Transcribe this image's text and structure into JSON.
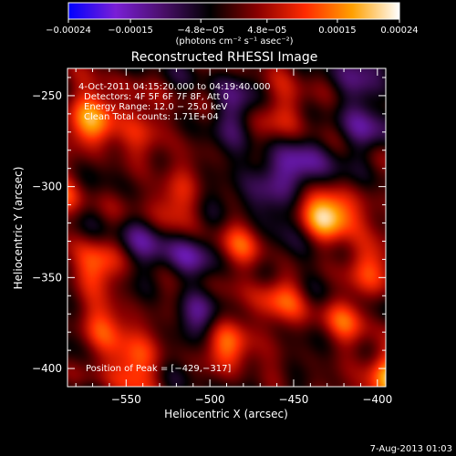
{
  "chart_data": {
    "type": "heatmap",
    "title": "Reconstructed RHESSI Image",
    "xlabel": "Heliocentric X (arcsec)",
    "ylabel": "Heliocentric Y (arcsec)",
    "xlim": [
      -585,
      -395
    ],
    "ylim": [
      -410,
      -235
    ],
    "x_ticks": [
      -550,
      -500,
      -450,
      -400
    ],
    "y_ticks": [
      -400,
      -350,
      -300,
      -250
    ],
    "x_tick_labels": [
      "−550",
      "−500",
      "−450",
      "−400"
    ],
    "y_tick_labels": [
      "−400",
      "−350",
      "−300",
      "−250"
    ],
    "colorbar": {
      "range": [
        -0.00024,
        0.00024
      ],
      "tick_values": [
        -0.00024,
        -0.00015,
        -4.8e-05,
        4.8e-05,
        0.00015,
        0.00024
      ],
      "tick_labels": [
        "−0.00024",
        "−0.00015",
        "−4.8e−05",
        "4.8e−05",
        "0.00015",
        "0.00024"
      ],
      "units": "(photons cm⁻² s⁻¹ asec⁻²)",
      "colors": [
        "#0000ff",
        "#7a1fd6",
        "#4a0f6a",
        "#000000",
        "#8a0000",
        "#ff2a00",
        "#ffa000",
        "#ffffff"
      ]
    },
    "annotations": [
      " 4-Oct-2011 04:15:20.000 to 04:19:40.000",
      "Detectors: 4F 5F 6F 7F 8F, Att 0",
      "Energy Range: 12.0 − 25.0 keV",
      "Clean    Total counts: 1.71E+04"
    ],
    "peak_label": "Position of Peak = [−429,−317]",
    "peak": [
      -429,
      -317
    ],
    "sources": [
      {
        "x": -429,
        "y": -317,
        "value": 0.00024
      },
      {
        "x": -568,
        "y": -262,
        "value": 0.00019
      },
      {
        "x": -393,
        "y": -405,
        "value": 0.0002
      },
      {
        "x": -548,
        "y": -399,
        "value": 0.00015
      },
      {
        "x": -487,
        "y": -385,
        "value": 0.00014
      },
      {
        "x": -570,
        "y": -345,
        "value": 0.00013
      },
      {
        "x": -458,
        "y": -359,
        "value": 0.00012
      },
      {
        "x": -524,
        "y": -308,
        "value": 0.00011
      },
      {
        "x": -453,
        "y": -257,
        "value": 0.0001
      },
      {
        "x": -399,
        "y": -342,
        "value": 0.00011
      },
      {
        "x": -420,
        "y": -372,
        "value": 0.0001
      },
      {
        "x": -481,
        "y": -333,
        "value": 9e-05
      },
      {
        "x": -560,
        "y": -378,
        "value": 0.0001
      },
      {
        "x": -535,
        "y": -268,
        "value": 8e-05
      },
      {
        "x": -513,
        "y": -355,
        "value": 8e-05
      },
      {
        "x": -590,
        "y": -305,
        "value": 9e-05
      },
      {
        "x": -415,
        "y": -240,
        "value": -9e-05
      },
      {
        "x": -442,
        "y": -287,
        "value": -0.00012
      },
      {
        "x": -515,
        "y": -342,
        "value": -0.00013
      },
      {
        "x": -505,
        "y": -368,
        "value": -0.00011
      },
      {
        "x": -468,
        "y": -300,
        "value": -0.0001
      },
      {
        "x": -487,
        "y": -258,
        "value": -8e-05
      },
      {
        "x": -540,
        "y": -328,
        "value": -7e-05
      },
      {
        "x": -448,
        "y": -336,
        "value": -8e-05
      },
      {
        "x": -404,
        "y": -268,
        "value": -8e-05
      },
      {
        "x": -570,
        "y": -420,
        "value": -6e-05
      }
    ]
  },
  "footer": {
    "timestamp": "7-Aug-2013 01:03"
  }
}
